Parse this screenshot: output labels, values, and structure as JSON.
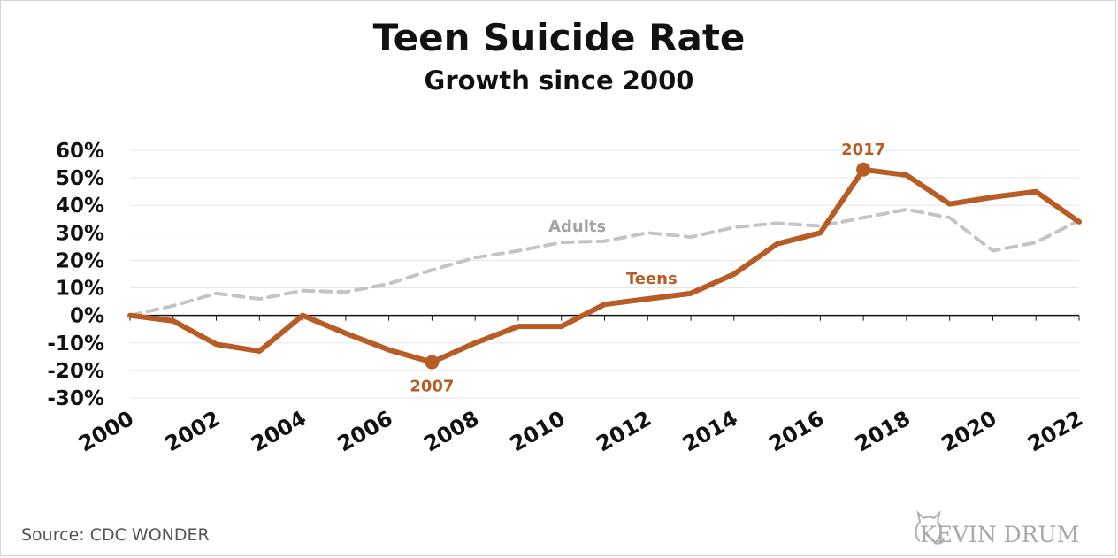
{
  "chart_data": {
    "type": "line",
    "title": "Teen Suicide Rate",
    "subtitle": "Growth since 2000",
    "x": [
      2000,
      2001,
      2002,
      2003,
      2004,
      2005,
      2006,
      2007,
      2008,
      2009,
      2010,
      2011,
      2012,
      2013,
      2014,
      2015,
      2016,
      2017,
      2018,
      2019,
      2020,
      2021,
      2022
    ],
    "x_tick_labels": [
      "2000",
      "2002",
      "2004",
      "2006",
      "2008",
      "2010",
      "2012",
      "2014",
      "2016",
      "2018",
      "2020",
      "2022"
    ],
    "x_ticks": [
      2000,
      2002,
      2004,
      2006,
      2008,
      2010,
      2012,
      2014,
      2016,
      2018,
      2020,
      2022
    ],
    "y_ticks": [
      60,
      50,
      40,
      30,
      20,
      10,
      0,
      -10,
      -20,
      -30
    ],
    "y_tick_labels": [
      "60%",
      "50%",
      "40%",
      "30%",
      "20%",
      "10%",
      "0%",
      "-10%",
      "-20%",
      "-30%"
    ],
    "xlim": [
      2000,
      2022
    ],
    "ylim": [
      -30,
      60
    ],
    "grid": true,
    "xlabel": "",
    "ylabel": "",
    "series": [
      {
        "name": "Teens",
        "color": "#b85c26",
        "style": "solid",
        "values": [
          0,
          -2,
          -10.5,
          -13,
          0,
          -6.5,
          -12.5,
          -17,
          -10,
          -4,
          -4,
          4,
          6,
          8,
          15,
          26,
          30,
          53,
          51,
          40.5,
          43,
          45,
          34
        ]
      },
      {
        "name": "Adults",
        "color": "#c4c4c4",
        "style": "dashed",
        "values": [
          0,
          3.5,
          8,
          6,
          9,
          8.5,
          11.5,
          16.5,
          21,
          23.5,
          26.5,
          27,
          30,
          28.5,
          32,
          33.5,
          32.5,
          35.5,
          38.5,
          35.5,
          23.5,
          26.5,
          34.5
        ]
      }
    ],
    "annotations": [
      {
        "label": "2017",
        "x": 2017,
        "y": 53,
        "series": "Teens"
      },
      {
        "label": "2007",
        "x": 2007,
        "y": -17,
        "series": "Teens"
      }
    ]
  },
  "footer": {
    "source": "Source:  CDC WONDER",
    "brand": "KEVIN DRUM"
  }
}
